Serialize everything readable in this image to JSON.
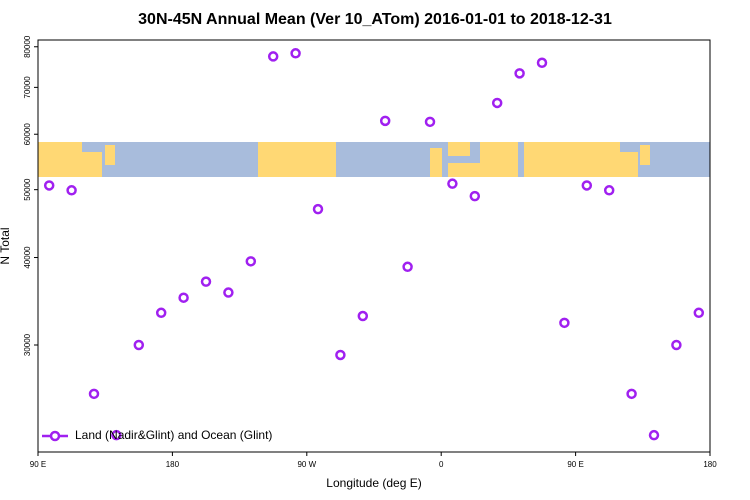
{
  "chart_data": {
    "type": "scatter",
    "title": "30N-45N Annual Mean (Ver 10_ATom)   2016-01-01 to 2018-12-31",
    "xlabel": "Longitude (deg E)",
    "ylabel": "N Total",
    "yscale": "log",
    "legend": "bottom-left",
    "xlim": [
      90,
      540
    ],
    "xticks": [
      {
        "value": 90,
        "label": "90 E"
      },
      180,
      {
        "value": 270,
        "label": "90 W"
      },
      {
        "value": 360,
        "label": "0"
      },
      {
        "value": 450,
        "label": "90 E"
      },
      {
        "value": 540,
        "label": "180"
      }
    ],
    "ylim": [
      21100,
      81800
    ],
    "yticks": [
      30000,
      40000,
      50000,
      60000,
      70000,
      80000
    ],
    "series": [
      {
        "name": "Land (Nadir&Glint) and Ocean (Glint)",
        "color": "#a020f0",
        "x": [
          97.5,
          112.5,
          127.5,
          142.5,
          157.5,
          172.5,
          187.5,
          202.5,
          217.5,
          232.5,
          247.5,
          262.5,
          277.5,
          292.5,
          307.5,
          322.5,
          337.5,
          352.5,
          367.5,
          382.5,
          397.5,
          412.5,
          427.5,
          442.5,
          457.5,
          472.5,
          487.5,
          502.5,
          517.5,
          532.5
        ],
        "values": [
          50700,
          49900,
          25550,
          22300,
          30000,
          33350,
          35050,
          36950,
          35650,
          39500,
          77500,
          78300,
          46900,
          29030,
          33000,
          62700,
          38800,
          62500,
          51000,
          48950,
          66500,
          73300,
          75900,
          32270,
          50700,
          49900,
          25550,
          22300,
          30000,
          33350
        ]
      }
    ]
  }
}
